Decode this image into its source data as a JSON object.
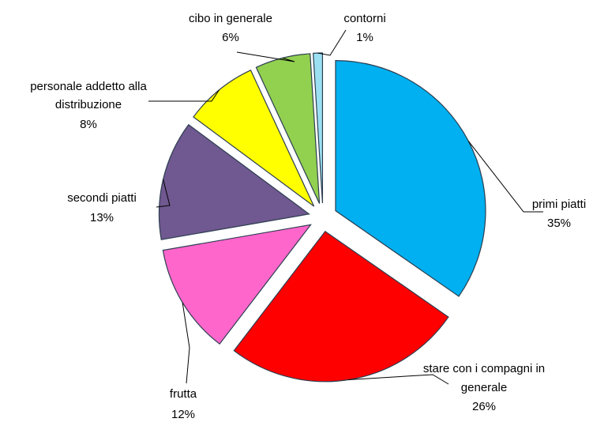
{
  "chart_data": {
    "type": "pie",
    "title": "",
    "slices": [
      {
        "label": "primi piatti",
        "value": 35,
        "percent_label": "35%",
        "color": "#00b0f0"
      },
      {
        "label": "stare con i compagni in generale",
        "value": 26,
        "percent_label": "26%",
        "color": "#ff0000"
      },
      {
        "label": "frutta",
        "value": 12,
        "percent_label": "12%",
        "color": "#ff66cc"
      },
      {
        "label": "secondi piatti",
        "value": 13,
        "percent_label": "13%",
        "color": "#705890"
      },
      {
        "label": "personale addetto alla distribuzione",
        "value": 8,
        "percent_label": "8%",
        "color": "#ffff00"
      },
      {
        "label": "cibo in generale",
        "value": 6,
        "percent_label": "6%",
        "color": "#92d050"
      },
      {
        "label": "contorni",
        "value": 1,
        "percent_label": "1%",
        "color": "#9be0f2"
      }
    ],
    "exploded": true,
    "legend": "none",
    "data_labels": "outside with leader lines"
  },
  "labels": {
    "primi_piatti": {
      "lines": [
        "primi piatti"
      ],
      "pct": "35%"
    },
    "stare": {
      "lines": [
        "stare con i compagni in",
        "generale"
      ],
      "pct": "26%"
    },
    "frutta": {
      "lines": [
        "frutta"
      ],
      "pct": "12%"
    },
    "secondi": {
      "lines": [
        "secondi piatti"
      ],
      "pct": "13%"
    },
    "personale": {
      "lines": [
        "personale addetto alla",
        "distribuzione"
      ],
      "pct": "8%"
    },
    "cibo": {
      "lines": [
        "cibo in generale"
      ],
      "pct": "6%"
    },
    "contorni": {
      "lines": [
        "contorni"
      ],
      "pct": "1%"
    }
  }
}
